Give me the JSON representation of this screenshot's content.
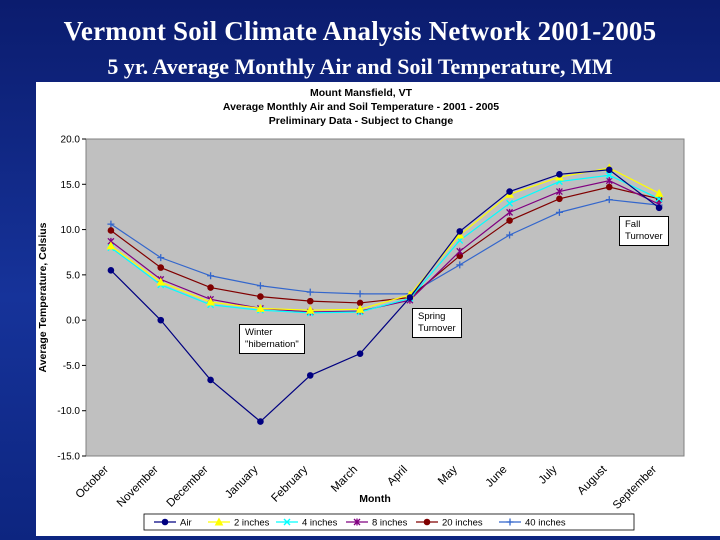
{
  "slide": {
    "title": "Vermont Soil Climate Analysis Network 2001-2005",
    "subtitle": "5 yr. Average Monthly Air and Soil Temperature, MM"
  },
  "annotations": {
    "fall": "Fall\nTurnover",
    "spring": "Spring\nTurnover",
    "winter": "Winter\n\"hibernation\""
  },
  "colors": {
    "background": "#16339a",
    "plot_area": "#c0c0c0",
    "air": "#000080",
    "2_inches": "#ffff00",
    "4_inches": "#00ffff",
    "8_inches": "#800080",
    "20_inches": "#800000",
    "40_inches": "#3366cc"
  },
  "chart_data": {
    "type": "line",
    "title": "Mount Mansfield, VT",
    "subtitle_lines": [
      "Average Monthly Air and Soil Temperature  -  2001 - 2005",
      "Preliminary Data - Subject to Change"
    ],
    "xlabel": "Month",
    "ylabel": "Average Temperature, Celsius",
    "ylim": [
      -15,
      20
    ],
    "yticks": [
      "20.0",
      "15.0",
      "10.0",
      "5.0",
      "0.0",
      "-5.0",
      "-10.0",
      "-15.0"
    ],
    "categories": [
      "October",
      "November",
      "December",
      "January",
      "February",
      "March",
      "April",
      "May",
      "June",
      "July",
      "August",
      "September"
    ],
    "grid": false,
    "legend_position": "bottom",
    "series": [
      {
        "name": "Air",
        "marker": "circle",
        "values": [
          5.5,
          0.0,
          -6.6,
          -11.2,
          -6.1,
          -3.7,
          2.5,
          9.8,
          14.2,
          16.1,
          16.6,
          12.4
        ]
      },
      {
        "name": "2 inches",
        "marker": "triangle",
        "values": [
          8.2,
          4.2,
          2.0,
          1.3,
          1.1,
          1.2,
          2.8,
          9.4,
          13.9,
          15.8,
          16.8,
          14.0
        ]
      },
      {
        "name": "4 inches",
        "marker": "x",
        "values": [
          8.0,
          3.9,
          1.7,
          1.1,
          0.8,
          0.9,
          2.4,
          8.8,
          12.9,
          15.3,
          16.0,
          13.4
        ]
      },
      {
        "name": "8 inches",
        "marker": "asterisk",
        "values": [
          8.7,
          4.5,
          2.3,
          1.3,
          0.9,
          1.0,
          2.2,
          7.6,
          11.9,
          14.2,
          15.4,
          12.8
        ]
      },
      {
        "name": "20 inches",
        "marker": "circle",
        "values": [
          9.9,
          5.8,
          3.6,
          2.6,
          2.1,
          1.9,
          2.5,
          7.1,
          11.0,
          13.4,
          14.7,
          13.4
        ]
      },
      {
        "name": "40 inches",
        "marker": "plus",
        "values": [
          10.6,
          6.9,
          4.9,
          3.8,
          3.1,
          2.9,
          2.9,
          6.1,
          9.4,
          11.9,
          13.3,
          12.7
        ]
      }
    ]
  }
}
